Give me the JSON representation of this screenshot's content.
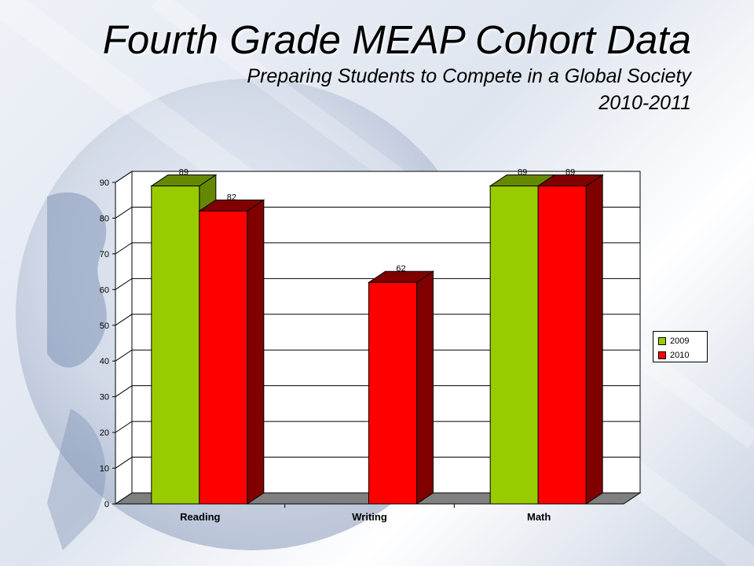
{
  "slide": {
    "title": "Fourth Grade MEAP Cohort Data",
    "subtitle_line1": "Preparing Students to Compete in a Global Society",
    "subtitle_line2": "2010-2011"
  },
  "colors": {
    "series_2009": "#99cc00",
    "series_2009_side": "#668800",
    "series_2010": "#ff0000",
    "series_2010_side": "#800000",
    "floor": "#808080"
  },
  "chart_data": {
    "type": "bar",
    "categories": [
      "Reading",
      "Writing",
      "Math"
    ],
    "series": [
      {
        "name": "2009",
        "values": [
          89,
          null,
          89
        ]
      },
      {
        "name": "2010",
        "values": [
          82,
          62,
          89
        ]
      }
    ],
    "data_labels": [
      [
        "89",
        null,
        "89"
      ],
      [
        "82",
        "62",
        "89"
      ]
    ],
    "y_ticks": [
      0,
      10,
      20,
      30,
      40,
      50,
      60,
      70,
      80,
      90
    ],
    "ylim": [
      0,
      90
    ],
    "grid": true,
    "legend_position": "right",
    "three_d": true
  }
}
